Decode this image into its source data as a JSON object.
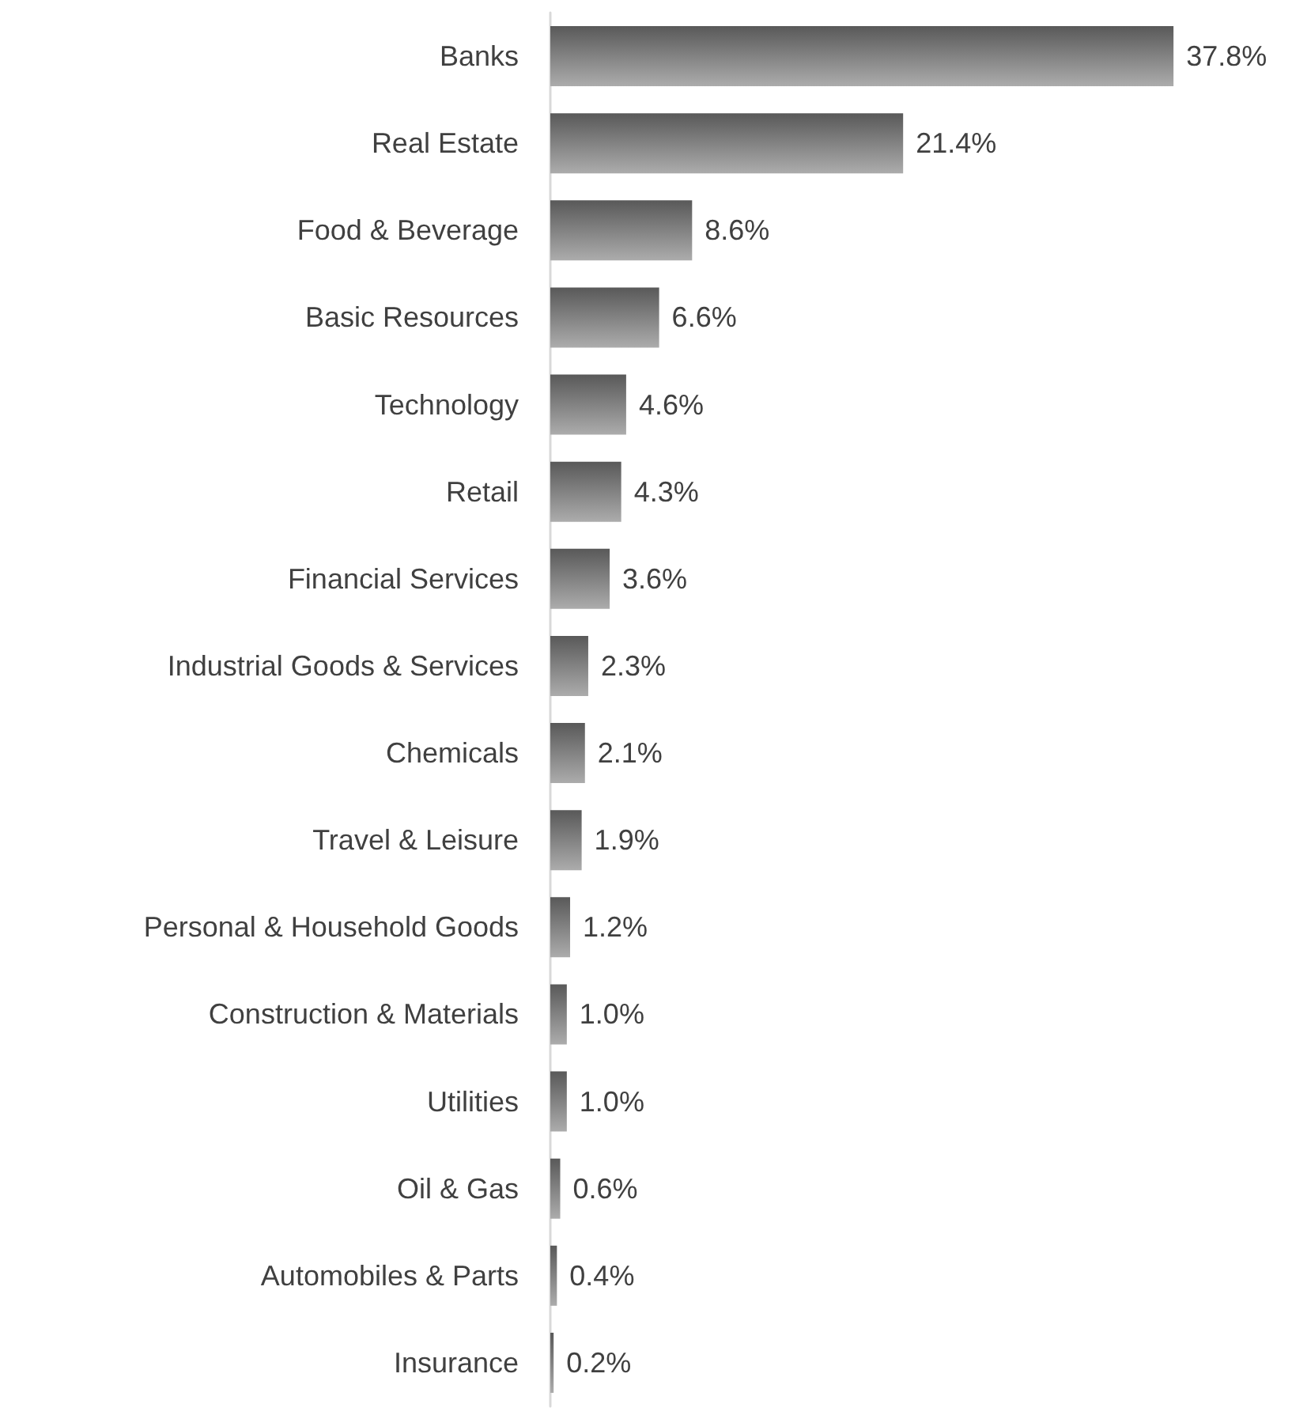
{
  "chart_data": {
    "type": "bar",
    "orientation": "horizontal",
    "color": "#7f7f7f",
    "categories": [
      "Banks",
      "Real Estate",
      "Food & Beverage",
      "Basic Resources",
      "Technology",
      "Retail",
      "Financial Services",
      "Industrial Goods & Services",
      "Chemicals",
      "Travel & Leisure",
      "Personal & Household Goods",
      "Construction & Materials",
      "Utilities",
      "Oil & Gas",
      "Automobiles & Parts",
      "Insurance"
    ],
    "values": [
      37.8,
      21.4,
      8.6,
      6.6,
      4.6,
      4.3,
      3.6,
      2.3,
      2.1,
      1.9,
      1.2,
      1.0,
      1.0,
      0.6,
      0.4,
      0.2
    ],
    "value_labels": [
      "37.8%",
      "21.4%",
      "8.6%",
      "6.6%",
      "4.6%",
      "4.3%",
      "3.6%",
      "2.3%",
      "2.1%",
      "1.9%",
      "1.2%",
      "1.0%",
      "1.0%",
      "0.6%",
      "0.4%",
      "0.2%"
    ],
    "tick_labels": "y"
  }
}
